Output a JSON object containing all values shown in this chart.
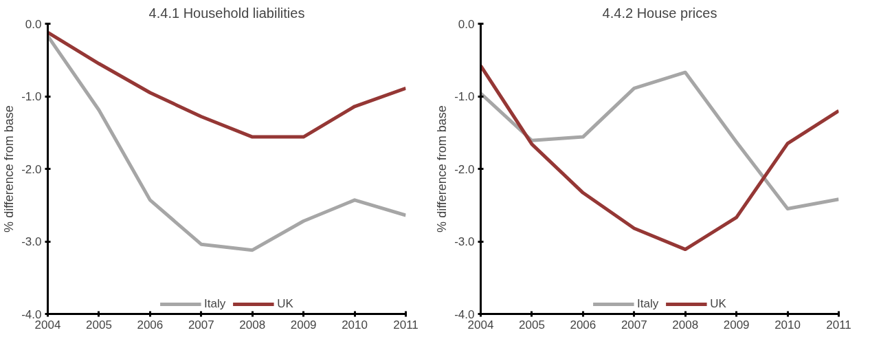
{
  "chart_data": [
    {
      "type": "line",
      "title": "4.4.1 Household liabilities",
      "ylabel": "% difference from base",
      "x": [
        2004,
        2005,
        2006,
        2007,
        2008,
        2009,
        2010,
        2011
      ],
      "xlim": [
        2004,
        2011
      ],
      "xticks": [
        2004,
        2005,
        2006,
        2007,
        2008,
        2009,
        2010,
        2011
      ],
      "ylim": [
        -4,
        0
      ],
      "yticks": [
        {
          "value": -4,
          "label": "-4.0"
        },
        {
          "value": -3,
          "label": "-3.0"
        },
        {
          "value": -2,
          "label": "-2.0"
        },
        {
          "value": -1,
          "label": "-1.0"
        },
        {
          "value": 0,
          "label": "0.0"
        }
      ],
      "grid": false,
      "legend": "bottom",
      "marker": "none",
      "line_style": "solid",
      "series": [
        {
          "name": "Italy",
          "color": "#a6a6a6",
          "values": [
            -0.17,
            -1.19,
            -2.43,
            -3.04,
            -3.12,
            -2.72,
            -2.43,
            -2.64
          ]
        },
        {
          "name": "UK",
          "color": "#953735",
          "values": [
            -0.12,
            -0.55,
            -0.95,
            -1.28,
            -1.56,
            -1.56,
            -1.14,
            -0.89
          ]
        }
      ]
    },
    {
      "type": "line",
      "title": "4.4.2 House prices",
      "ylabel": "% difference from base",
      "x": [
        2004,
        2005,
        2006,
        2007,
        2008,
        2009,
        2010,
        2011
      ],
      "xlim": [
        2004,
        2011
      ],
      "xticks": [
        2004,
        2005,
        2006,
        2007,
        2008,
        2009,
        2010,
        2011
      ],
      "ylim": [
        -4,
        0
      ],
      "yticks": [
        {
          "value": -4,
          "label": "-4.0"
        },
        {
          "value": -3,
          "label": "-3.0"
        },
        {
          "value": -2,
          "label": "-2.0"
        },
        {
          "value": -1,
          "label": "-1.0"
        },
        {
          "value": 0,
          "label": "0.0"
        }
      ],
      "grid": false,
      "legend": "bottom",
      "marker": "none",
      "line_style": "solid",
      "series": [
        {
          "name": "Italy",
          "color": "#a6a6a6",
          "values": [
            -0.96,
            -1.61,
            -1.56,
            -0.89,
            -0.67,
            -1.63,
            -2.55,
            -2.42
          ]
        },
        {
          "name": "UK",
          "color": "#953735",
          "values": [
            -0.58,
            -1.66,
            -2.33,
            -2.82,
            -3.11,
            -2.67,
            -1.65,
            -1.2
          ]
        }
      ]
    }
  ]
}
